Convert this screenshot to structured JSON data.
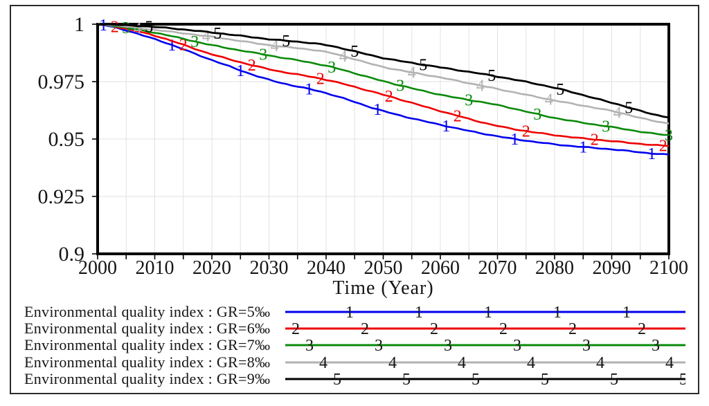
{
  "window": {
    "background": "#ffffff",
    "frame_border_color": "#2b2b2b",
    "axis_color": "#000000"
  },
  "chart_data": {
    "type": "line",
    "title": "",
    "xlabel": "Time (Year)",
    "ylabel": "",
    "xlim": [
      2000,
      2100
    ],
    "ylim": [
      0.9,
      1.0
    ],
    "x_tick_interval": 10,
    "x_minor_tick_interval": 5,
    "x_tick_labels": [
      "2000",
      "2010",
      "2020",
      "2030",
      "2040",
      "2050",
      "2060",
      "2070",
      "2080",
      "2090",
      "2100"
    ],
    "y_tick_values": [
      1,
      0.975,
      0.95,
      0.925,
      0.9
    ],
    "y_tick_labels": [
      "1",
      "0.975",
      "0.95",
      "0.925",
      "0.9"
    ],
    "grid": {
      "show": true,
      "color": "#e2e2e2",
      "vertical_every_years": 5,
      "horizontal_every": 0.025
    },
    "legend_position": "bottom-left",
    "x": [
      2000,
      2010,
      2020,
      2030,
      2040,
      2050,
      2060,
      2070,
      2080,
      2090,
      2100
    ],
    "series": [
      {
        "name": "Environmental quality index : GR=5‰",
        "marker": "1",
        "color": "#0000ee",
        "values": [
          1.0,
          0.9935,
          0.9844,
          0.9758,
          0.97,
          0.9622,
          0.9562,
          0.9512,
          0.9477,
          0.9455,
          0.9432
        ],
        "marker_years": [
          2001,
          2013,
          2025,
          2037,
          2049,
          2061,
          2073,
          2085,
          2097
        ]
      },
      {
        "name": "Environmental quality index : GR=6‰",
        "marker": "2",
        "color": "#ee0000",
        "values": [
          1.0,
          0.995,
          0.9869,
          0.9804,
          0.9758,
          0.9693,
          0.9622,
          0.9557,
          0.9517,
          0.9491,
          0.947
        ],
        "marker_years": [
          2003,
          2015,
          2027,
          2039,
          2051,
          2063,
          2075,
          2087,
          2099
        ]
      },
      {
        "name": "Environmental quality index : GR=7‰",
        "marker": "3",
        "color": "#0a8a0a",
        "values": [
          1.0,
          0.9963,
          0.9909,
          0.9864,
          0.9819,
          0.9752,
          0.9693,
          0.9648,
          0.9592,
          0.9552,
          0.9517
        ],
        "marker_years": [
          2005,
          2017,
          2029,
          2041,
          2053,
          2065,
          2077,
          2089,
          2100
        ]
      },
      {
        "name": "Environmental quality index : GR=8‰",
        "marker": "4",
        "color": "#b2b2b2",
        "values": [
          1.0,
          0.9975,
          0.9945,
          0.9909,
          0.9879,
          0.9814,
          0.9768,
          0.9718,
          0.9668,
          0.9622,
          0.9568
        ],
        "marker_years": [
          2007,
          2019,
          2031,
          2043,
          2055,
          2067,
          2079,
          2091
        ]
      },
      {
        "name": "Environmental quality index : GR=9‰",
        "marker": "5",
        "color": "#000000",
        "values": [
          1.0,
          0.9988,
          0.9964,
          0.9935,
          0.9909,
          0.9853,
          0.9812,
          0.9772,
          0.9723,
          0.9658,
          0.9595
        ],
        "marker_years": [
          2009,
          2021,
          2033,
          2045,
          2057,
          2069,
          2081,
          2093
        ]
      }
    ]
  }
}
